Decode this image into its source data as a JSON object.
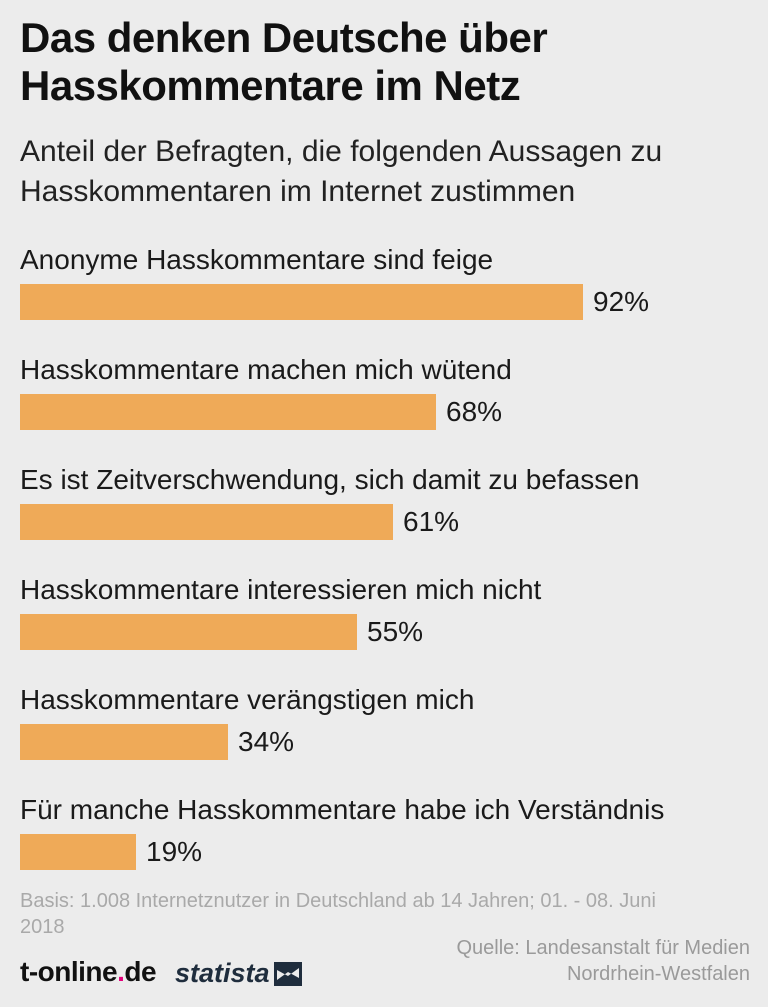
{
  "title": "Das denken Deutsche über Hasskommentare im Netz",
  "subtitle": "Anteil der Befragten, die folgenden Aussagen zu Hasskommentaren im Internet zustimmen",
  "chart_data": {
    "type": "bar",
    "orientation": "horizontal",
    "categories": [
      "Anonyme Hasskommentare sind feige",
      "Hasskommentare machen mich wütend",
      "Es ist Zeitverschwendung, sich damit zu befassen",
      "Hasskommentare interessieren mich nicht",
      "Hasskommentare verängstigen mich",
      "Für manche Hasskommentare habe ich Verständnis"
    ],
    "values": [
      92,
      68,
      61,
      55,
      34,
      19
    ],
    "value_labels": [
      "92%",
      "68%",
      "61%",
      "55%",
      "34%",
      "19%"
    ],
    "unit": "%",
    "xlim": [
      0,
      100
    ],
    "grid": false,
    "bar_color": "#efaa58"
  },
  "footer": {
    "basis": "Basis: 1.008 Internetznutzer in Deutschland ab 14 Jahren; 01. - 08. Juni 2018",
    "source": "Quelle: Landesanstalt für Medien Nordrhein-Westfalen",
    "logo_tonline_main": "t-online",
    "logo_tonline_dot": ".",
    "logo_tonline_tld": "de",
    "logo_statista": "statista"
  },
  "colors": {
    "background": "#ececec",
    "bar": "#efaa58",
    "brand_magenta": "#e2007a"
  }
}
